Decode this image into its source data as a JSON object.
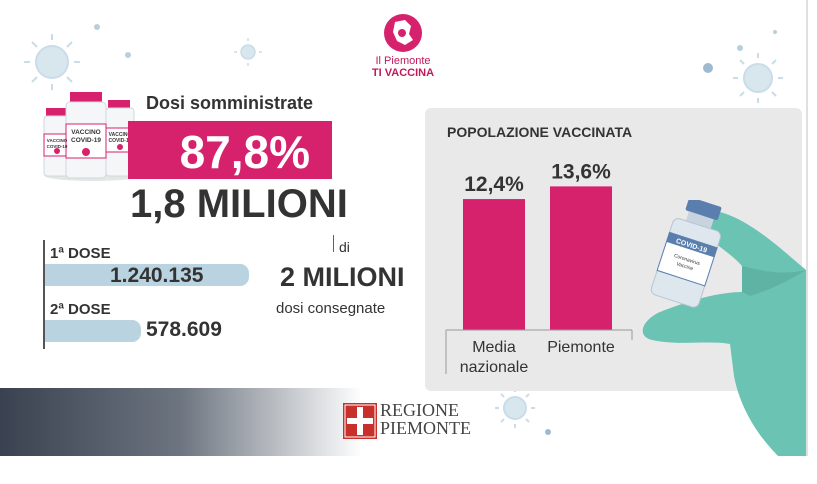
{
  "logo": {
    "line1": "Il Piemonte",
    "line2": "TI VACCINA"
  },
  "vials": {
    "label_main": "VACCINO\nCOVID-19",
    "label_side": "VACCINO\nCOVID-19"
  },
  "doses": {
    "title": "Dosi somministrate",
    "percent": "87,8%",
    "total": "1,8 MILIONI",
    "first_label": "1ª DOSE",
    "first_value": "1.240.135",
    "first_fraction": 0.68,
    "second_label": "2ª DOSE",
    "second_value": "578.609",
    "second_fraction": 0.32
  },
  "delivered": {
    "of": "di",
    "amount": "2 MILIONI",
    "label": "dosi consegnate"
  },
  "chart_data": {
    "type": "bar",
    "title": "POPOLAZIONE VACCINATA",
    "categories": [
      "Media nazionale",
      "Piemonte"
    ],
    "values": [
      12.4,
      13.6
    ],
    "value_labels": [
      "12,4%",
      "13,6%"
    ],
    "category_lines": [
      [
        "Media",
        "nazionale"
      ],
      [
        "Piemonte"
      ]
    ],
    "bar_color": "#d6226d",
    "ylim": [
      0,
      15
    ]
  },
  "vial_hand": {
    "brand": "COVID-19",
    "text": "Coronavirus Vaccine"
  },
  "footer": {
    "org_line1": "REGIONE",
    "org_line2": "PIEMONTE"
  },
  "colors": {
    "accent": "#d6226d",
    "dose_bar": "#b9d3e0",
    "hand": "#6bc3b4",
    "panel": "#e9e9e9"
  }
}
